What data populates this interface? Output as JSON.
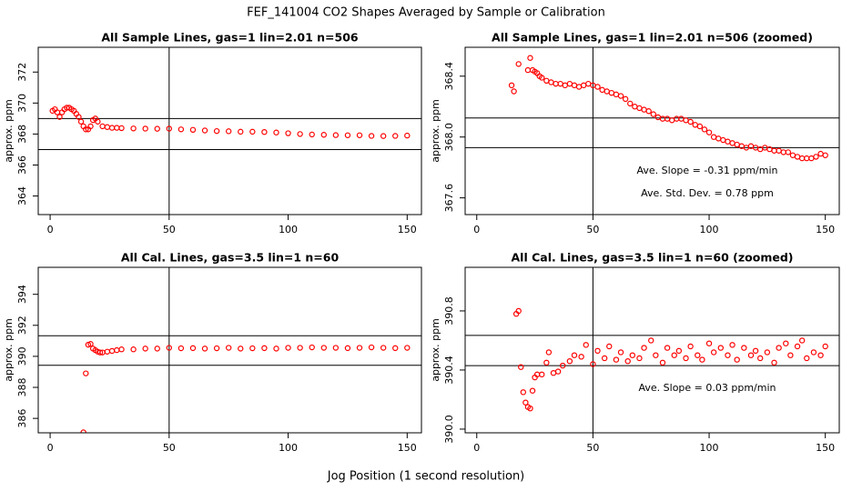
{
  "page": {
    "title": "FEF_141004  CO2 Shapes Averaged by Sample or Calibration",
    "xlabel": "Jog Position (1 second resolution)"
  },
  "chart_data": [
    {
      "type": "scatter",
      "title": "All Sample Lines, gas=1 lin=2.01 n=506",
      "ylabel": "approx. ppm",
      "color": "#ff0000",
      "xlim": [
        -5,
        156
      ],
      "xticks": [
        0,
        50,
        100,
        150
      ],
      "ylim": [
        362.8,
        373.6
      ],
      "yticks": [
        364,
        366,
        368,
        370,
        372
      ],
      "hlines": [
        369,
        367
      ],
      "vlines": [
        50
      ],
      "annotations": [],
      "x": [
        1,
        2,
        3,
        4,
        5,
        6,
        7,
        8,
        9,
        10,
        11,
        12,
        13,
        14,
        15,
        16,
        17,
        18,
        19,
        20,
        22,
        24,
        26,
        28,
        30,
        35,
        40,
        45,
        50,
        55,
        60,
        65,
        70,
        75,
        80,
        85,
        90,
        95,
        100,
        105,
        110,
        115,
        120,
        125,
        130,
        135,
        140,
        145,
        150
      ],
      "values": [
        369.5,
        369.6,
        369.4,
        369.1,
        369.4,
        369.6,
        369.7,
        369.7,
        369.6,
        369.5,
        369.3,
        369.1,
        368.8,
        368.5,
        368.3,
        368.3,
        368.5,
        368.9,
        369.0,
        368.8,
        368.5,
        368.45,
        368.4,
        368.4,
        368.38,
        368.36,
        368.35,
        368.34,
        368.35,
        368.3,
        368.27,
        368.23,
        368.19,
        368.18,
        368.15,
        368.15,
        368.13,
        368.1,
        368.05,
        368.0,
        367.97,
        367.95,
        367.93,
        367.92,
        367.92,
        367.88,
        367.87,
        367.88,
        367.9
      ]
    },
    {
      "type": "scatter",
      "title": "All Sample Lines, gas=1 lin=2.01 n=506 (zoomed)",
      "ylabel": "approx. ppm",
      "color": "#ff0000",
      "xlim": [
        -5,
        156
      ],
      "xticks": [
        0,
        50,
        100,
        150
      ],
      "ylim": [
        367.49,
        368.59
      ],
      "yticks": [
        367.6,
        {
          "value": 368,
          "label": "368.0"
        },
        368.4
      ],
      "hlines": [
        368.125,
        367.93
      ],
      "vlines": [
        50
      ],
      "annotations": [
        "Ave. Slope =  -0.31  ppm/min",
        "Ave. Std. Dev. =  0.78  ppm"
      ],
      "x": [
        15,
        16,
        18,
        22,
        23,
        24,
        25,
        26,
        27,
        28,
        30,
        32,
        34,
        36,
        38,
        40,
        42,
        44,
        46,
        48,
        50,
        52,
        54,
        56,
        58,
        60,
        62,
        64,
        66,
        68,
        70,
        72,
        74,
        76,
        78,
        80,
        82,
        84,
        86,
        88,
        90,
        92,
        94,
        96,
        98,
        100,
        102,
        104,
        106,
        108,
        110,
        112,
        114,
        116,
        118,
        120,
        122,
        124,
        126,
        128,
        130,
        132,
        134,
        136,
        138,
        140,
        142,
        144,
        146,
        148,
        150
      ],
      "values": [
        368.34,
        368.3,
        368.48,
        368.44,
        368.52,
        368.44,
        368.43,
        368.42,
        368.4,
        368.39,
        368.37,
        368.36,
        368.35,
        368.35,
        368.34,
        368.35,
        368.34,
        368.33,
        368.34,
        368.35,
        368.34,
        368.33,
        368.31,
        368.3,
        368.29,
        368.28,
        368.27,
        368.25,
        368.22,
        368.2,
        368.19,
        368.18,
        368.17,
        368.15,
        368.13,
        368.12,
        368.12,
        368.11,
        368.12,
        368.12,
        368.11,
        368.1,
        368.08,
        368.07,
        368.05,
        368.03,
        368,
        367.99,
        367.98,
        367.97,
        367.96,
        367.95,
        367.94,
        367.93,
        367.94,
        367.93,
        367.92,
        367.93,
        367.92,
        367.91,
        367.91,
        367.9,
        367.9,
        367.88,
        367.87,
        367.86,
        367.86,
        367.86,
        367.87,
        367.89,
        367.88
      ]
    },
    {
      "type": "scatter",
      "title": "All Cal. Lines, gas=3.5 lin=1 n=60",
      "ylabel": "approx. ppm",
      "color": "#ff0000",
      "xlim": [
        -5,
        156
      ],
      "xticks": [
        0,
        50,
        100,
        150
      ],
      "ylim": [
        385.07,
        395.74
      ],
      "yticks": [
        386,
        388,
        390,
        392,
        394
      ],
      "hlines": [
        391.33,
        389.42
      ],
      "vlines": [
        50
      ],
      "annotations": [],
      "x": [
        14,
        15,
        16,
        17,
        18,
        19,
        20,
        21,
        22,
        24,
        26,
        28,
        30,
        35,
        40,
        45,
        50,
        55,
        60,
        65,
        70,
        75,
        80,
        85,
        90,
        95,
        100,
        105,
        110,
        115,
        120,
        125,
        130,
        135,
        140,
        145,
        150
      ],
      "values": [
        385.1,
        388.9,
        390.75,
        390.8,
        390.5,
        390.4,
        390.3,
        390.25,
        390.25,
        390.3,
        390.35,
        390.4,
        390.45,
        390.45,
        390.5,
        390.5,
        390.55,
        390.52,
        390.53,
        390.5,
        390.52,
        390.55,
        390.5,
        390.52,
        390.53,
        390.5,
        390.55,
        390.55,
        390.58,
        390.55,
        390.55,
        390.53,
        390.55,
        390.58,
        390.55,
        390.53,
        390.55
      ]
    },
    {
      "type": "scatter",
      "title": "All Cal. Lines, gas=3.5 lin=1 n=60 (zoomed)",
      "ylabel": "approx. ppm",
      "color": "#ff0000",
      "xlim": [
        -5,
        156
      ],
      "xticks": [
        0,
        50,
        100,
        150
      ],
      "ylim": [
        389.975,
        391.095
      ],
      "yticks": [
        {
          "value": 390,
          "label": "390.0"
        },
        390.4,
        390.8
      ],
      "hlines": [
        390.634,
        390.43
      ],
      "vlines": [
        50
      ],
      "annotations": [
        "Ave. Slope =  0.03  ppm/min"
      ],
      "x": [
        17,
        18,
        19,
        20,
        21,
        22,
        23,
        24,
        25,
        26,
        28,
        30,
        31,
        33,
        35,
        37,
        40,
        42,
        45,
        47,
        50,
        52,
        55,
        57,
        60,
        62,
        65,
        67,
        70,
        72,
        75,
        77,
        80,
        82,
        85,
        87,
        90,
        92,
        95,
        97,
        100,
        102,
        105,
        108,
        110,
        112,
        115,
        118,
        120,
        122,
        125,
        128,
        130,
        133,
        135,
        138,
        140,
        142,
        145,
        148,
        150
      ],
      "values": [
        390.78,
        390.8,
        390.42,
        390.25,
        390.18,
        390.15,
        390.14,
        390.26,
        390.35,
        390.37,
        390.37,
        390.45,
        390.52,
        390.38,
        390.39,
        390.43,
        390.46,
        390.5,
        390.49,
        390.57,
        390.44,
        390.53,
        390.48,
        390.56,
        390.47,
        390.52,
        390.46,
        390.5,
        390.48,
        390.55,
        390.6,
        390.5,
        390.45,
        390.55,
        390.5,
        390.53,
        390.48,
        390.56,
        390.5,
        390.47,
        390.58,
        390.52,
        390.55,
        390.5,
        390.57,
        390.47,
        390.55,
        390.5,
        390.53,
        390.48,
        390.52,
        390.45,
        390.55,
        390.58,
        390.5,
        390.56,
        390.6,
        390.48,
        390.52,
        390.5,
        390.56
      ]
    }
  ]
}
